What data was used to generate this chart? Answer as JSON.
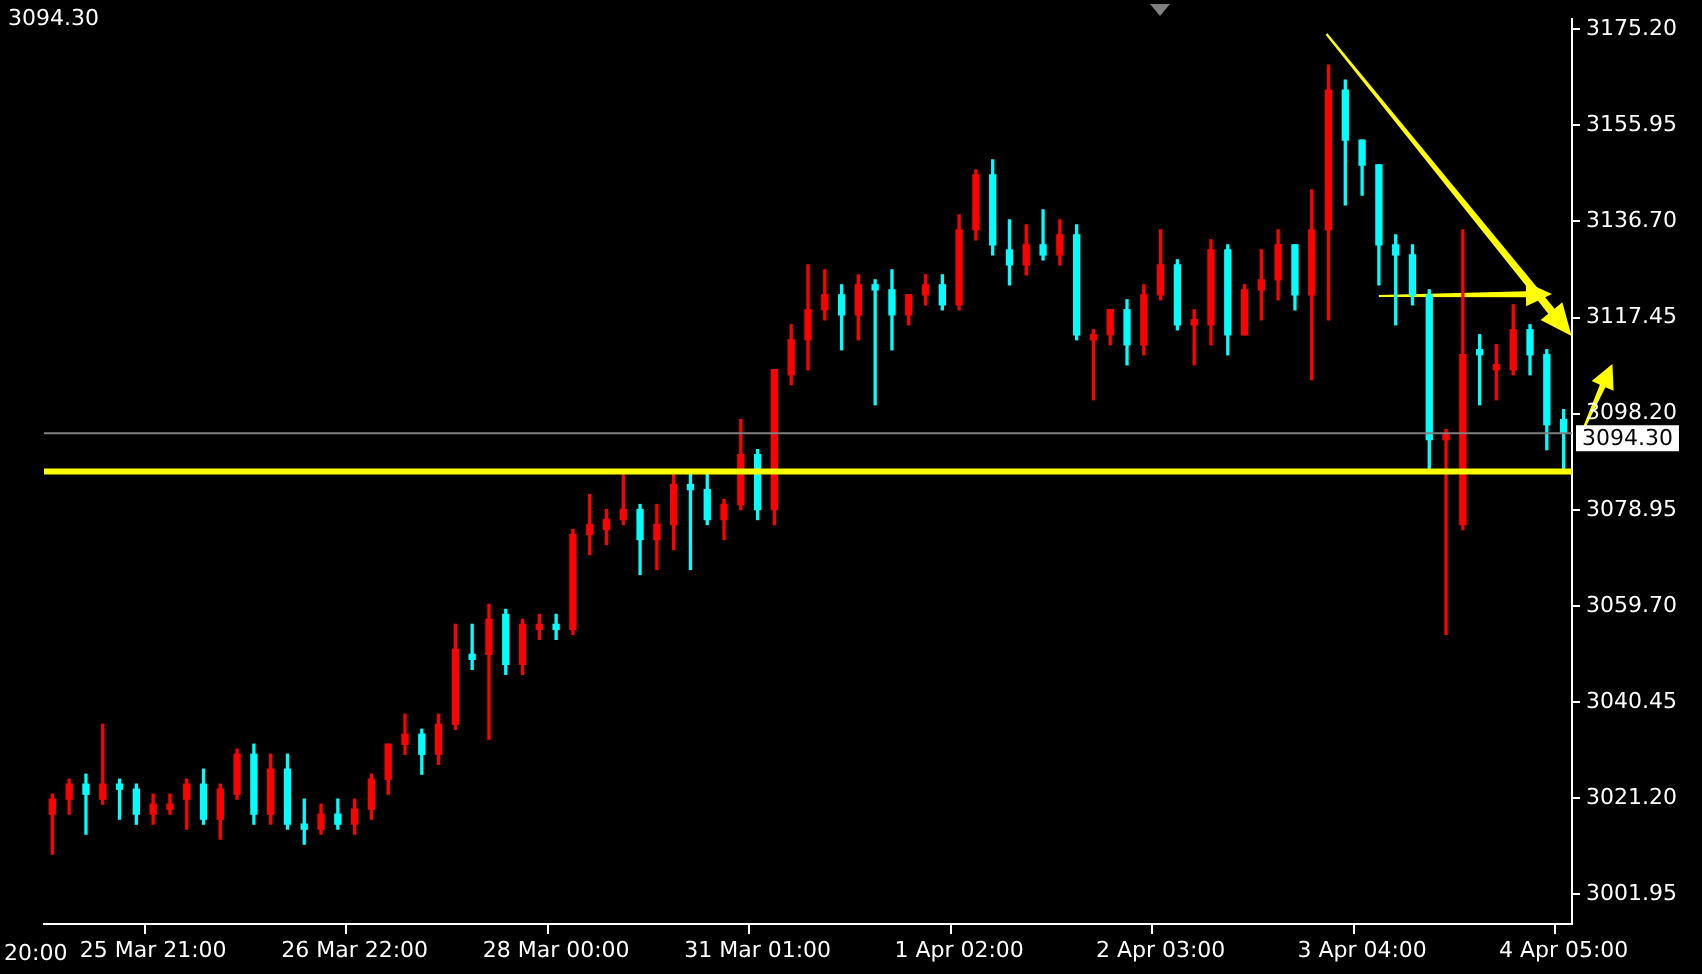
{
  "chart_data": {
    "type": "candlestick",
    "categories": [
      null,
      null,
      null,
      null,
      null,
      null,
      "25 Mar 21:00",
      null,
      null,
      null,
      null,
      null,
      null,
      null,
      null,
      null,
      null,
      null,
      "26 Mar 22:00",
      null,
      null,
      null,
      null,
      null,
      null,
      null,
      null,
      null,
      null,
      null,
      "28 Mar 00:00",
      null,
      null,
      null,
      null,
      null,
      null,
      null,
      null,
      null,
      null,
      null,
      "31 Mar 01:00",
      null,
      null,
      null,
      null,
      null,
      null,
      null,
      null,
      null,
      null,
      null,
      "1 Apr 02:00",
      null,
      null,
      null,
      null,
      null,
      null,
      null,
      null,
      null,
      null,
      null,
      "2 Apr 03:00",
      null,
      null,
      null,
      null,
      null,
      null,
      null,
      null,
      null,
      null,
      null,
      "3 Apr 04:00",
      null,
      null,
      null,
      null,
      null,
      null,
      null,
      null,
      null,
      null,
      null,
      "4 Apr 05:00"
    ],
    "ohlc": [
      [
        3018,
        3022,
        3010,
        3021
      ],
      [
        3021,
        3025,
        3018,
        3024
      ],
      [
        3024,
        3026,
        3014,
        3022
      ],
      [
        3021,
        3036,
        3020,
        3024
      ],
      [
        3024,
        3025,
        3017,
        3023
      ],
      [
        3023,
        3024,
        3016,
        3018
      ],
      [
        3018,
        3022,
        3016,
        3020
      ],
      [
        3019,
        3022,
        3018,
        3020
      ],
      [
        3021,
        3025,
        3015,
        3024
      ],
      [
        3024,
        3027,
        3016,
        3017
      ],
      [
        3017,
        3024,
        3013,
        3023
      ],
      [
        3022,
        3031,
        3021,
        3030
      ],
      [
        3030,
        3032,
        3016,
        3018
      ],
      [
        3018,
        3030,
        3016,
        3027
      ],
      [
        3027,
        3030,
        3015,
        3016
      ],
      [
        3016,
        3021,
        3012,
        3015
      ],
      [
        3015,
        3020,
        3014,
        3018
      ],
      [
        3018,
        3021,
        3015,
        3016
      ],
      [
        3016,
        3021,
        3014,
        3019
      ],
      [
        3019,
        3026,
        3017,
        3025
      ],
      [
        3025,
        3032,
        3022,
        3032
      ],
      [
        3032,
        3038,
        3030,
        3034
      ],
      [
        3034,
        3035,
        3026,
        3030
      ],
      [
        3030,
        3038,
        3028,
        3036
      ],
      [
        3036,
        3056,
        3035,
        3051
      ],
      [
        3050,
        3056,
        3047,
        3049
      ],
      [
        3050,
        3060,
        3033,
        3057
      ],
      [
        3058,
        3059,
        3046,
        3048
      ],
      [
        3048,
        3057,
        3046,
        3056
      ],
      [
        3055,
        3058,
        3053,
        3056
      ],
      [
        3056,
        3058,
        3053,
        3055
      ],
      [
        3055,
        3075,
        3054,
        3074
      ],
      [
        3074,
        3082,
        3070,
        3076
      ],
      [
        3075,
        3079,
        3072,
        3077
      ],
      [
        3077,
        3086,
        3076,
        3079
      ],
      [
        3079,
        3080,
        3066,
        3073
      ],
      [
        3073,
        3080,
        3067,
        3076
      ],
      [
        3076,
        3086,
        3071,
        3084
      ],
      [
        3084,
        3086,
        3067,
        3083
      ],
      [
        3083,
        3086,
        3076,
        3077
      ],
      [
        3077,
        3081,
        3073,
        3080
      ],
      [
        3080,
        3097,
        3079,
        3090
      ],
      [
        3090,
        3091,
        3077,
        3079
      ],
      [
        3079,
        3107,
        3076,
        3107
      ],
      [
        3106,
        3116,
        3104,
        3113
      ],
      [
        3113,
        3128,
        3107,
        3119
      ],
      [
        3119,
        3127,
        3117,
        3122
      ],
      [
        3122,
        3124,
        3111,
        3118
      ],
      [
        3118,
        3126,
        3113,
        3124
      ],
      [
        3124,
        3125,
        3100,
        3123
      ],
      [
        3123,
        3127,
        3111,
        3118
      ],
      [
        3118,
        3122,
        3116,
        3122
      ],
      [
        3122,
        3126,
        3120,
        3124
      ],
      [
        3124,
        3126,
        3119,
        3120
      ],
      [
        3120,
        3138,
        3119,
        3135
      ],
      [
        3135,
        3147,
        3133,
        3146
      ],
      [
        3146,
        3149,
        3130,
        3132
      ],
      [
        3131,
        3137,
        3124,
        3128
      ],
      [
        3128,
        3136,
        3126,
        3132
      ],
      [
        3132,
        3139,
        3129,
        3130
      ],
      [
        3130,
        3137,
        3128,
        3134
      ],
      [
        3134,
        3136,
        3113,
        3114
      ],
      [
        3113,
        3115,
        3101,
        3114
      ],
      [
        3114,
        3119,
        3112,
        3119
      ],
      [
        3119,
        3121,
        3108,
        3112
      ],
      [
        3112,
        3124,
        3110,
        3122
      ],
      [
        3122,
        3135,
        3121,
        3128
      ],
      [
        3128,
        3129,
        3115,
        3116
      ],
      [
        3116,
        3119,
        3108,
        3117
      ],
      [
        3116,
        3133,
        3112,
        3131
      ],
      [
        3131,
        3132,
        3110,
        3114
      ],
      [
        3114,
        3124,
        3114,
        3123
      ],
      [
        3123,
        3131,
        3117,
        3125
      ],
      [
        3125,
        3135,
        3121,
        3132
      ],
      [
        3132,
        3132,
        3119,
        3122
      ],
      [
        3122,
        3143,
        3105,
        3135
      ],
      [
        3135,
        3168,
        3117,
        3163
      ],
      [
        3163,
        3165,
        3140,
        3153
      ],
      [
        3153,
        3153,
        3142,
        3148
      ],
      [
        3148,
        3148,
        3124,
        3132
      ],
      [
        3132,
        3134,
        3116,
        3130
      ],
      [
        3130,
        3132,
        3120,
        3122
      ],
      [
        3122,
        3123,
        3087,
        3093
      ],
      [
        3093,
        3095,
        3054,
        3094
      ],
      [
        3076,
        3135,
        3075,
        3110
      ],
      [
        3111,
        3114,
        3100,
        3110
      ],
      [
        3107,
        3112,
        3101,
        3108
      ],
      [
        3107,
        3120,
        3106,
        3115
      ],
      [
        3115,
        3116,
        3106,
        3110
      ],
      [
        3110,
        3111,
        3091,
        3096
      ],
      [
        3097,
        3099,
        3087,
        3094.3
      ]
    ],
    "colors": [
      "#ff0000",
      "#ff0000",
      "#00ffff",
      "#ff0000",
      "#00ffff",
      "#00ffff",
      "#ff0000",
      "#ff0000",
      "#ff0000",
      "#00ffff",
      "#ff0000",
      "#ff0000",
      "#00ffff",
      "#ff0000",
      "#00ffff",
      "#00ffff",
      "#ff0000",
      "#00ffff",
      "#ff0000",
      "#ff0000",
      "#ff0000",
      "#ff0000",
      "#00ffff",
      "#ff0000",
      "#ff0000",
      "#00ffff",
      "#ff0000",
      "#00ffff",
      "#ff0000",
      "#ff0000",
      "#00ffff",
      "#ff0000",
      "#ff0000",
      "#ff0000",
      "#ff0000",
      "#00ffff",
      "#ff0000",
      "#ff0000",
      "#00ffff",
      "#00ffff",
      "#ff0000",
      "#ff0000",
      "#00ffff",
      "#ff0000",
      "#ff0000",
      "#ff0000",
      "#ff0000",
      "#00ffff",
      "#ff0000",
      "#00ffff",
      "#00ffff",
      "#ff0000",
      "#ff0000",
      "#00ffff",
      "#ff0000",
      "#ff0000",
      "#00ffff",
      "#00ffff",
      "#ff0000",
      "#00ffff",
      "#ff0000",
      "#00ffff",
      "#ff0000",
      "#ff0000",
      "#00ffff",
      "#ff0000",
      "#ff0000",
      "#00ffff",
      "#ff0000",
      "#ff0000",
      "#00ffff",
      "#ff0000",
      "#ff0000",
      "#ff0000",
      "#00ffff",
      "#ff0000",
      "#ff0000",
      "#00ffff",
      "#00ffff",
      "#00ffff",
      "#00ffff",
      "#00ffff",
      "#00ffff",
      "#ff0000",
      "#ff0000",
      "#00ffff",
      "#ff0000",
      "#ff0000",
      "#00ffff",
      "#00ffff",
      "#00ffff"
    ],
    "ylim": [
      2996.0,
      3177.2
    ],
    "yticks": [
      {
        "value": 3001.95,
        "label": "3001.95"
      },
      {
        "value": 3021.2,
        "label": "3021.20"
      },
      {
        "value": 3040.45,
        "label": "3040.45"
      },
      {
        "value": 3059.7,
        "label": "3059.70"
      },
      {
        "value": 3078.95,
        "label": "3078.95"
      },
      {
        "value": 3098.2,
        "label": "3098.20"
      },
      {
        "value": 3117.45,
        "label": "3117.45"
      },
      {
        "value": 3136.7,
        "label": "3136.70"
      },
      {
        "value": 3155.95,
        "label": "3155.95"
      },
      {
        "value": 3175.2,
        "label": "3175.20"
      }
    ],
    "ref_lines": [
      {
        "axis": "y",
        "value": 3094.3,
        "label": "3094.30",
        "color": "#808080"
      },
      {
        "axis": "y",
        "value": 3086.6,
        "color": "#ffff00"
      }
    ],
    "annotations": [
      "3094.30",
      "20:00"
    ]
  }
}
